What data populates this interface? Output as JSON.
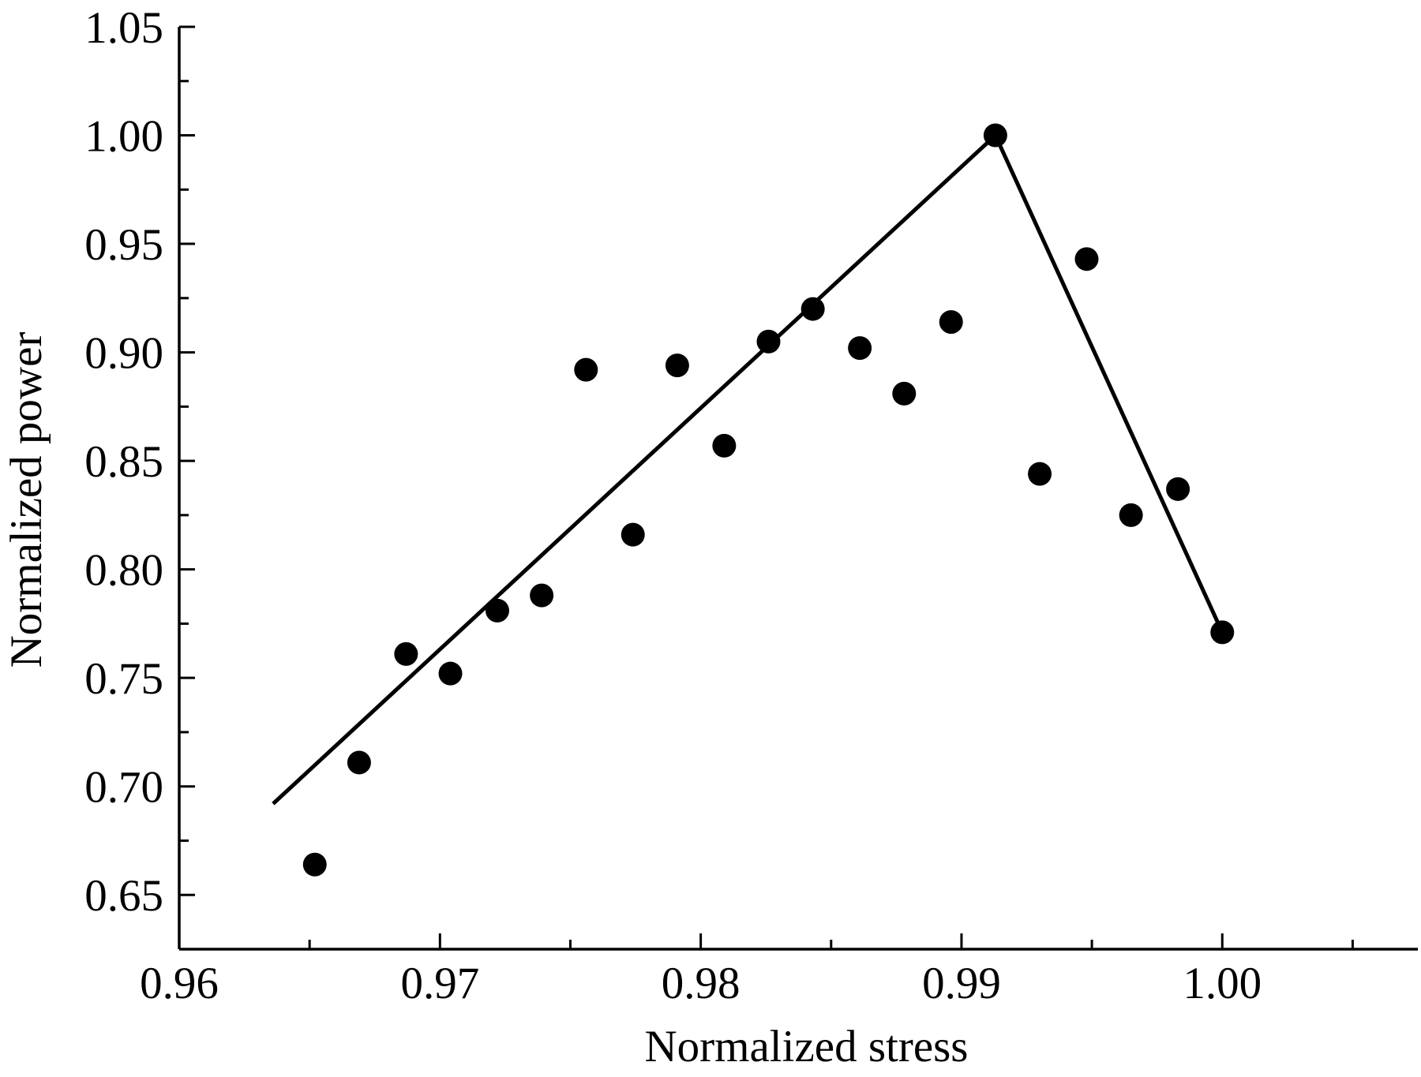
{
  "chart_data": {
    "type": "scatter",
    "title": "",
    "xlabel": "Normalized stress",
    "ylabel": "Normalized power",
    "xlim": [
      0.96,
      1.0075
    ],
    "ylim": [
      0.625,
      1.05
    ],
    "x_ticks": [
      "0.96",
      "0.97",
      "0.98",
      "0.99",
      "1.00"
    ],
    "x_minor_ticks": [
      0.965,
      0.975,
      0.985,
      0.995,
      1.005
    ],
    "y_ticks": [
      "0.65",
      "0.70",
      "0.75",
      "0.80",
      "0.85",
      "0.90",
      "0.95",
      "1.00",
      "1.05"
    ],
    "y_minor_ticks": [
      0.675,
      0.725,
      0.775,
      0.825,
      0.875,
      0.925,
      0.975,
      1.025
    ],
    "grid": false,
    "legend": "none",
    "series": [
      {
        "type": "scatter",
        "color": "#000000",
        "x": [
          0.9652,
          0.9669,
          0.9687,
          0.9704,
          0.9722,
          0.9739,
          0.9756,
          0.9774,
          0.9791,
          0.9809,
          0.9826,
          0.9843,
          0.9861,
          0.9878,
          0.9896,
          0.9913,
          0.993,
          0.9948,
          0.9965,
          0.9983,
          1.0
        ],
        "y": [
          0.664,
          0.711,
          0.761,
          0.752,
          0.781,
          0.788,
          0.892,
          0.816,
          0.894,
          0.857,
          0.905,
          0.92,
          0.902,
          0.881,
          0.914,
          1.0,
          0.844,
          0.943,
          0.825,
          0.837,
          0.771
        ]
      },
      {
        "type": "line",
        "color": "#000000",
        "x": [
          0.9636,
          0.9913,
          1.0
        ],
        "y": [
          0.692,
          1.0,
          0.771
        ]
      }
    ]
  }
}
